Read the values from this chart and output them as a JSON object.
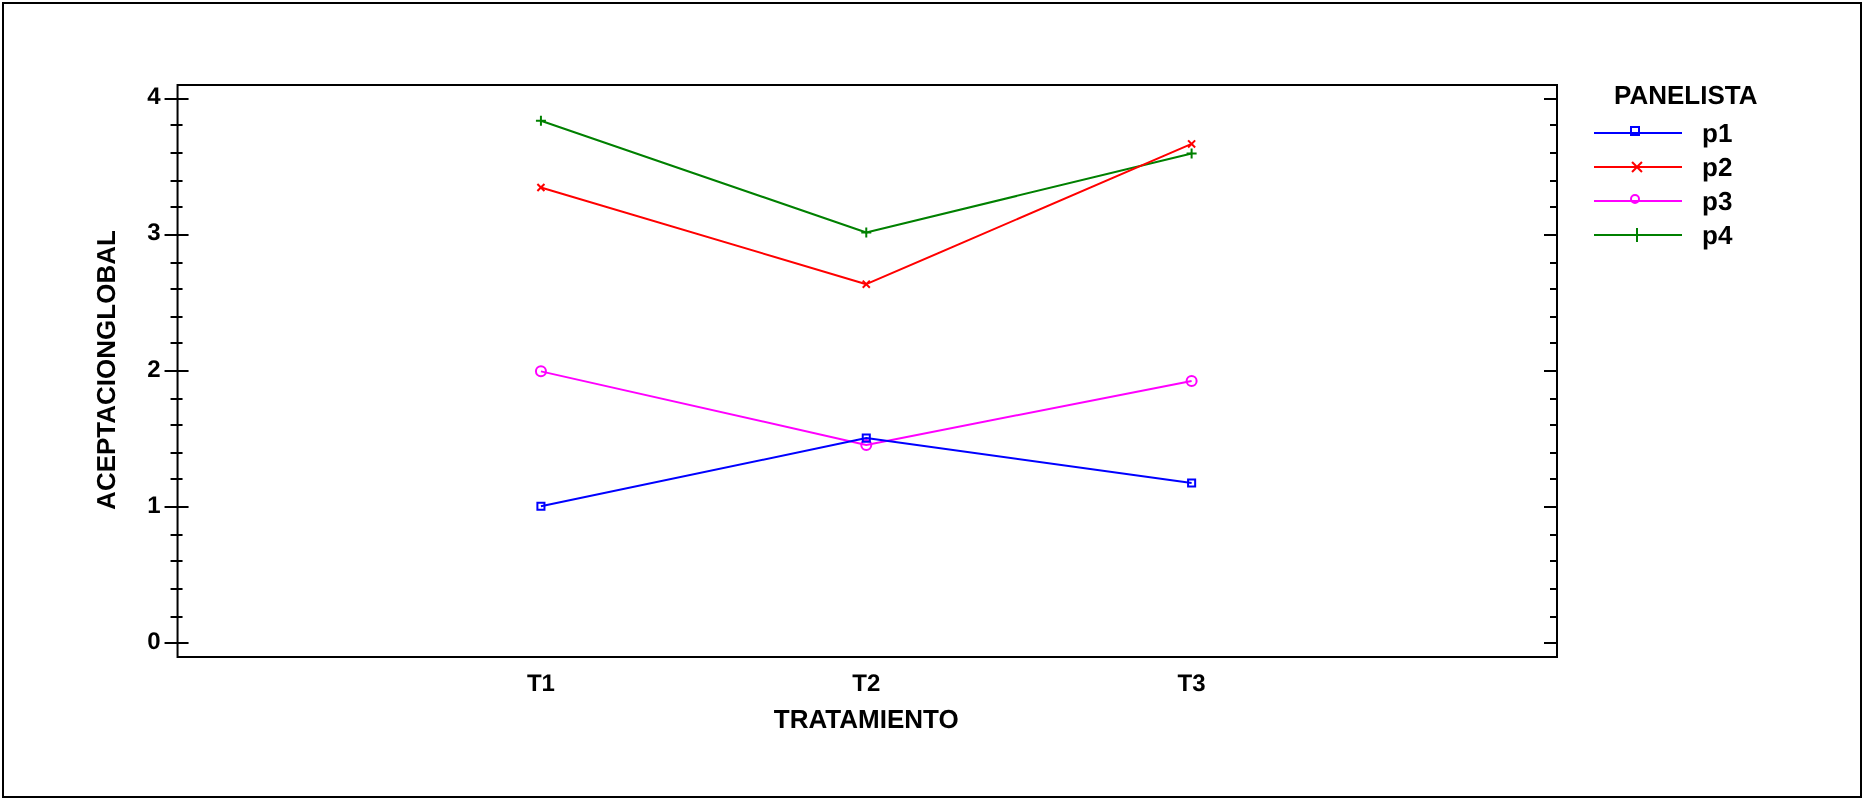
{
  "chart_data": {
    "type": "line",
    "xlabel": "TRATAMIENTO",
    "ylabel": "ACEPTACIONGLOBAL",
    "legend_title": "PANELISTA",
    "legend": "top right",
    "grid": false,
    "line_style": "solid",
    "categories": [
      "T1",
      "T2",
      "T3"
    ],
    "ylim": [
      -0.1,
      4.1
    ],
    "yticks": [
      0,
      {
        "value": 0.2,
        "label": null
      },
      {
        "value": 0.4,
        "label": null
      },
      {
        "value": 0.6,
        "label": null
      },
      {
        "value": 0.8,
        "label": null
      },
      1,
      {
        "value": 1.2,
        "label": null
      },
      {
        "value": 1.4,
        "label": null
      },
      {
        "value": 1.6,
        "label": null
      },
      {
        "value": 1.8,
        "label": null
      },
      2,
      {
        "value": 2.2,
        "label": null
      },
      {
        "value": 2.4,
        "label": null
      },
      {
        "value": 2.6,
        "label": null
      },
      {
        "value": 2.8,
        "label": null
      },
      3,
      {
        "value": 3.2,
        "label": null
      },
      {
        "value": 3.4,
        "label": null
      },
      {
        "value": 3.6,
        "label": null
      },
      {
        "value": 3.8,
        "label": null
      },
      4
    ],
    "series": [
      {
        "name": "p1",
        "color": "#0000ff",
        "marker": "square",
        "values": [
          1.0,
          1.5,
          1.17
        ]
      },
      {
        "name": "p2",
        "color": "#ff0000",
        "marker": "cross",
        "values": [
          3.34,
          2.63,
          3.66
        ]
      },
      {
        "name": "p3",
        "color": "#ff00ff",
        "marker": "circle",
        "values": [
          1.99,
          1.45,
          1.92
        ]
      },
      {
        "name": "p4",
        "color": "#008000",
        "marker": "plus",
        "values": [
          3.83,
          3.01,
          3.59
        ]
      }
    ]
  }
}
